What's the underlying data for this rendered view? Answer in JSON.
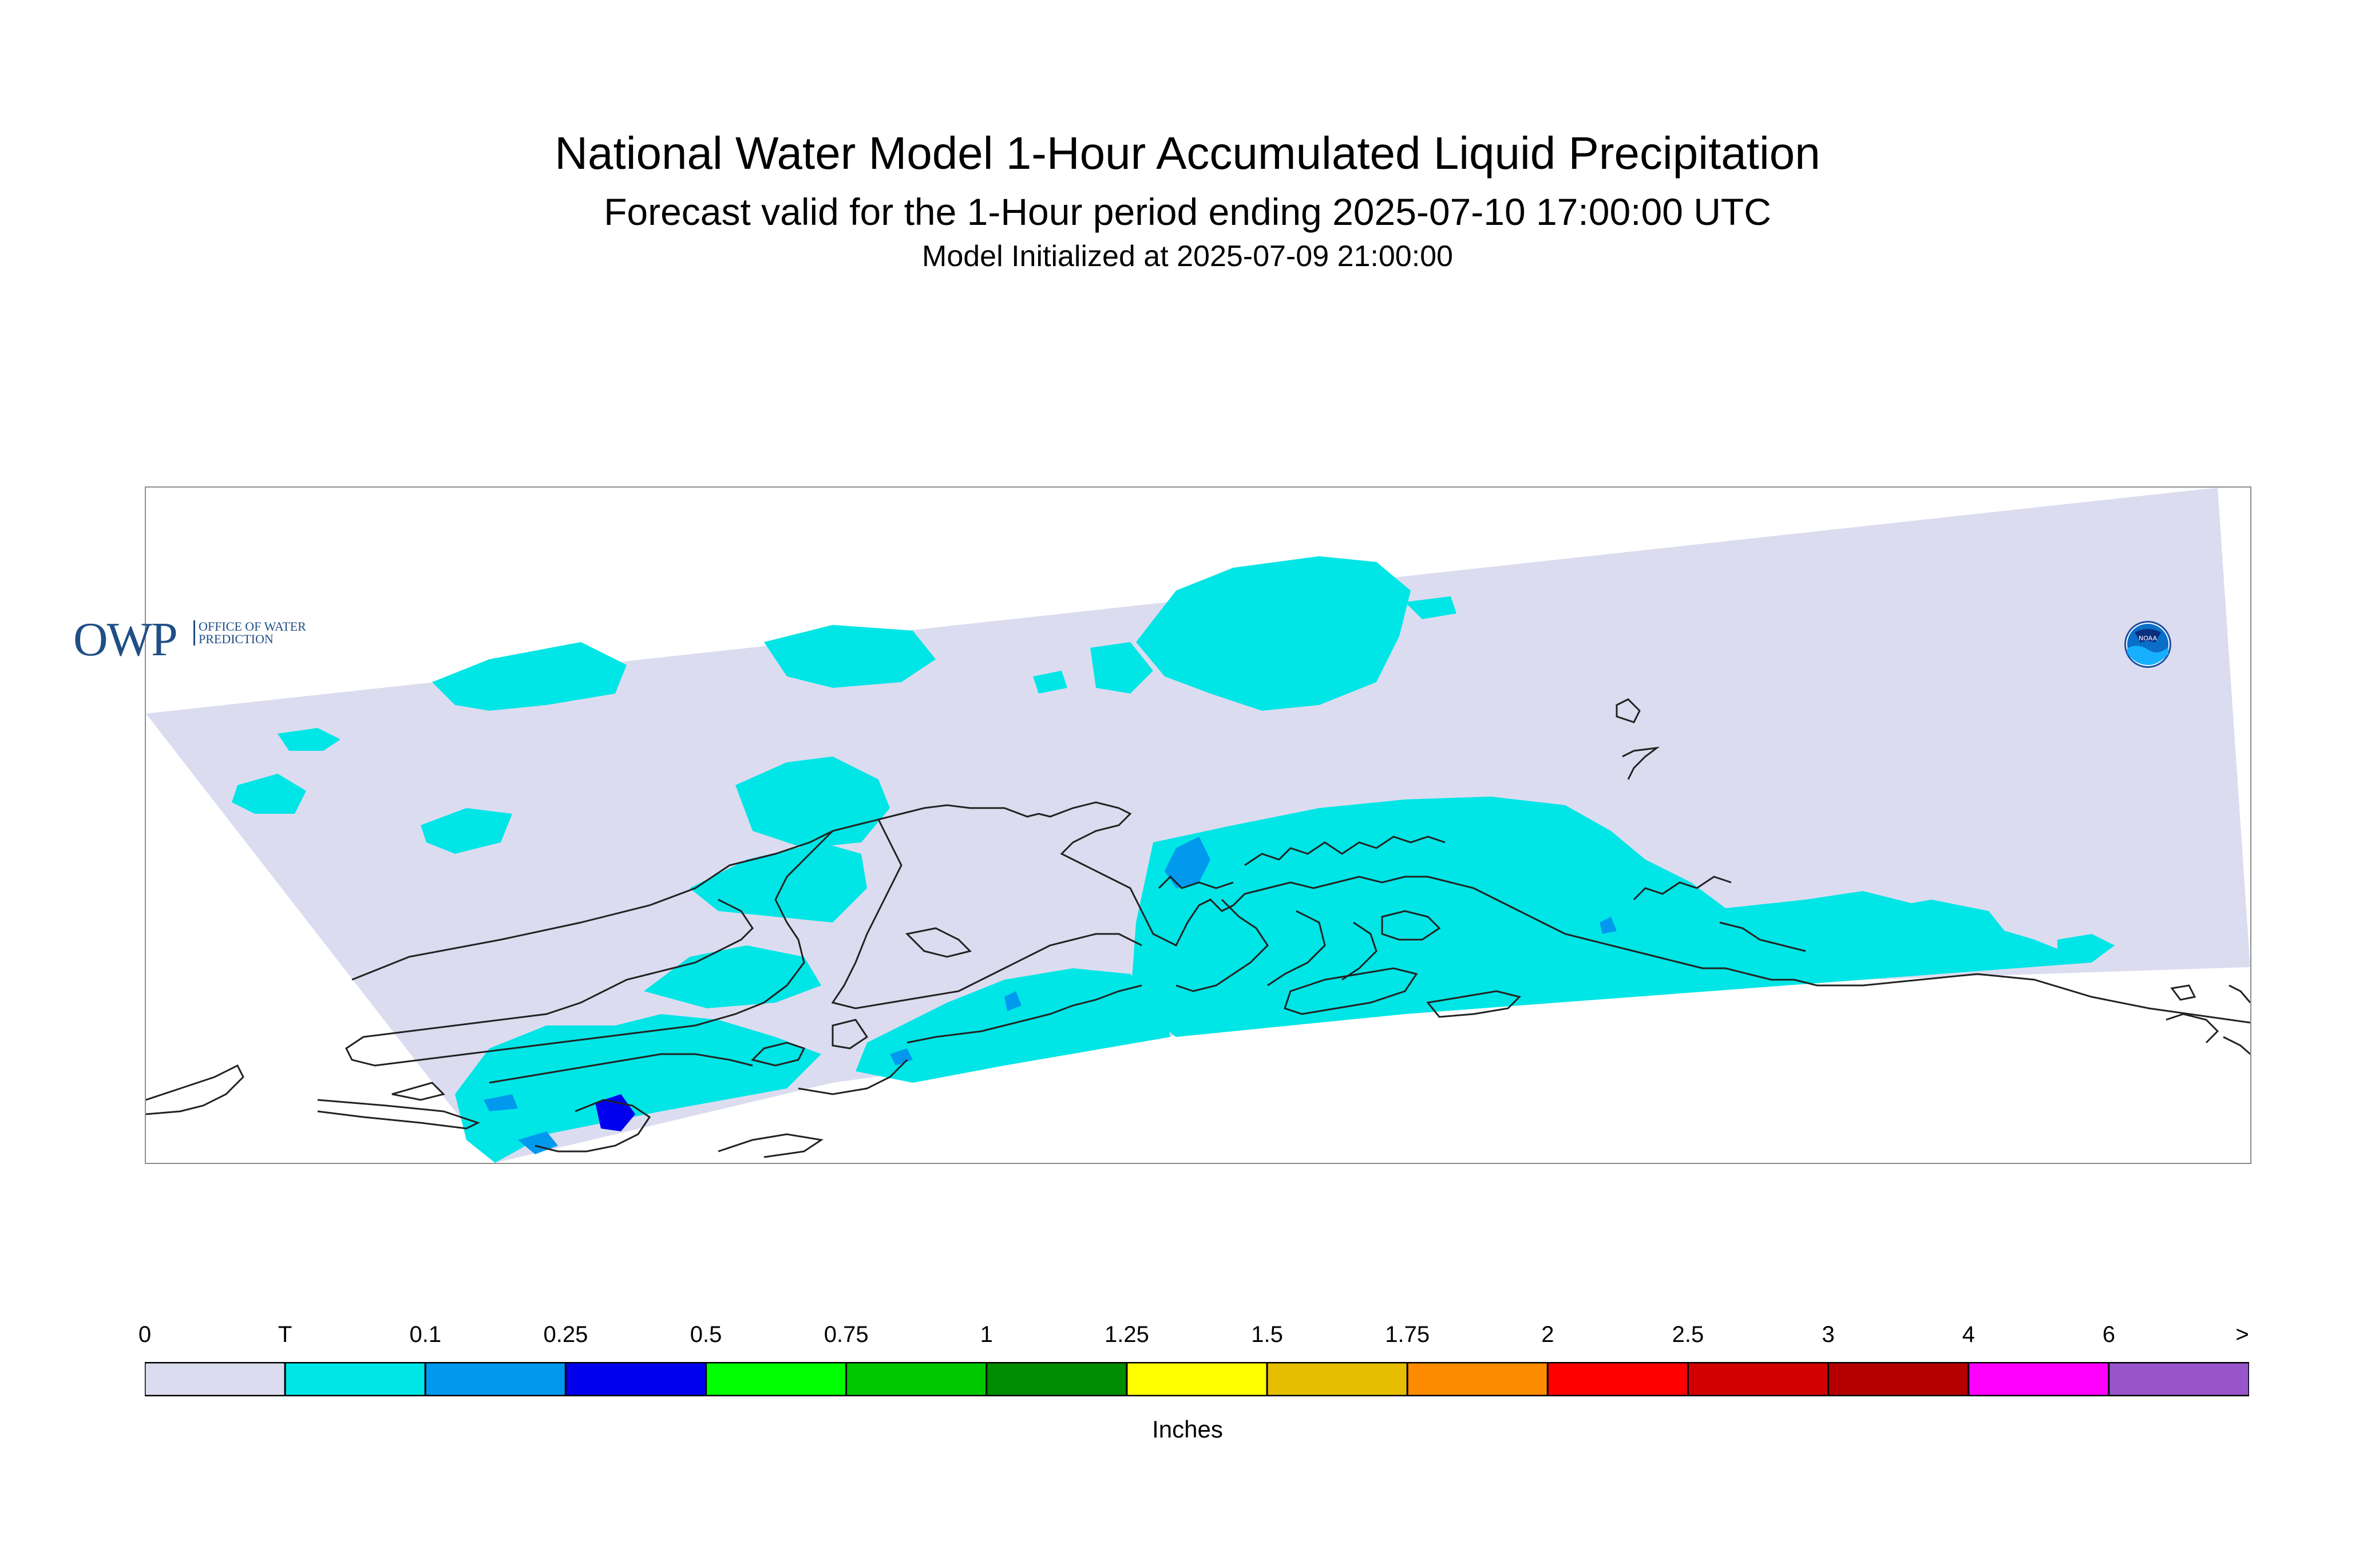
{
  "header": {
    "title": "National Water Model 1-Hour Accumulated Liquid Precipitation",
    "subtitle": "Forecast valid for the 1-Hour period ending 2025-07-10 17:00:00 UTC",
    "initialized": "Model Initialized at 2025-07-09 21:00:00"
  },
  "logos": {
    "owp_mark": "OWP",
    "owp_text": "OFFICE OF WATER PREDICTION",
    "noaa_text": "NOAA"
  },
  "legend": {
    "units": "Inches",
    "tick_labels": [
      "0",
      "T",
      "0.1",
      "0.25",
      "0.5",
      "0.75",
      "1",
      "1.25",
      "1.5",
      "1.75",
      "2",
      "2.5",
      "3",
      "4",
      "6",
      ">"
    ],
    "colors": [
      "#dcdcf0",
      "#00e5e5",
      "#0099ee",
      "#0000ee",
      "#00ff00",
      "#00c800",
      "#008c00",
      "#ffff00",
      "#e5be00",
      "#ff8c00",
      "#ff0000",
      "#d20000",
      "#b40000",
      "#ff00ff",
      "#9955cc"
    ]
  }
}
